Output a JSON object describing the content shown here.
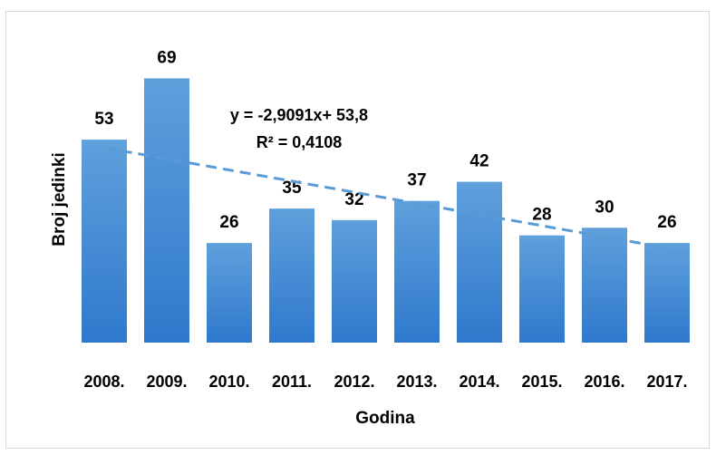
{
  "chart_data": {
    "type": "bar",
    "x_label": "Godina",
    "y_label": "Broj jedinki",
    "categories": [
      "2008.",
      "2009.",
      "2010.",
      "2011.",
      "2012.",
      "2013.",
      "2014.",
      "2015.",
      "2016.",
      "2017."
    ],
    "values": [
      53,
      69,
      26,
      35,
      32,
      37,
      42,
      28,
      30,
      26
    ],
    "color": "#4a8fd6",
    "ylim": [
      0,
      80
    ],
    "trendline": {
      "slope": -2.9091,
      "intercept": 53.8,
      "color": "#5b9bd5",
      "equation": "y = -2,9091x+ 53,8",
      "r2": "R² = 0,4108"
    }
  }
}
